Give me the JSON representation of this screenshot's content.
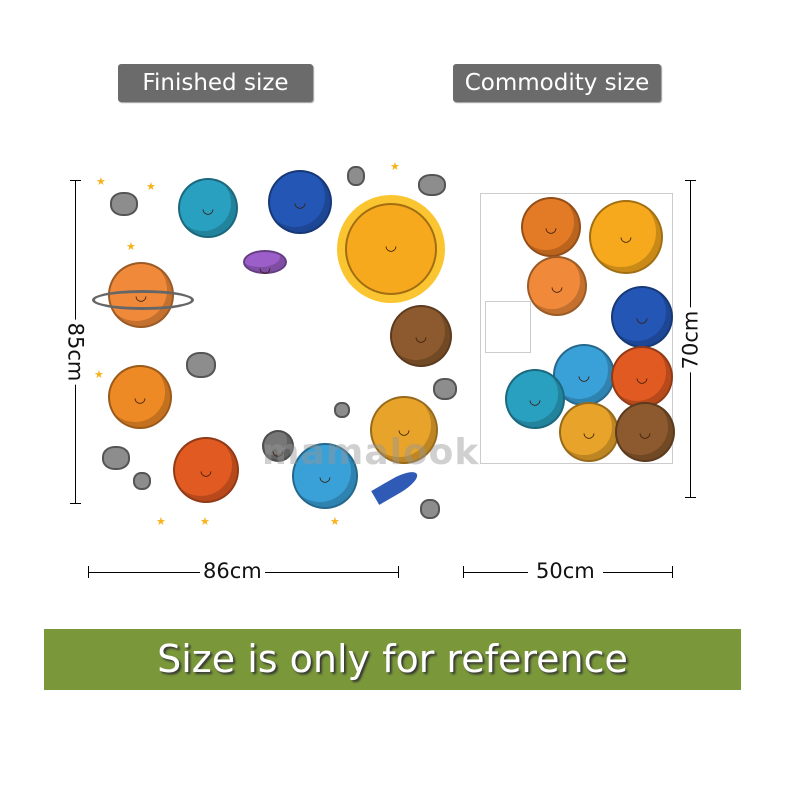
{
  "labels": {
    "finished": "Finished size",
    "commodity": "Commodity size"
  },
  "dimensions": {
    "finished_height": "85cm",
    "finished_width": "86cm",
    "commodity_width": "50cm",
    "commodity_height": "70cm"
  },
  "banner": "Size is only for reference",
  "watermark": "mamalook",
  "colors": {
    "tag_bg": "#6b6b6b",
    "banner_bg": "#7a983a",
    "star": "#f7b21c"
  }
}
